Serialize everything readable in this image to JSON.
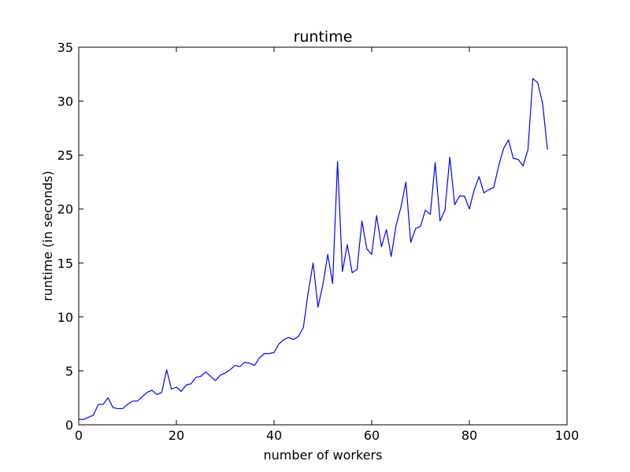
{
  "chart_data": {
    "type": "line",
    "title": "runtime",
    "xlabel": "number of workers",
    "ylabel": "runtime (in seconds)",
    "xlim": [
      0,
      100
    ],
    "ylim": [
      0,
      35
    ],
    "xticks": [
      0,
      20,
      40,
      60,
      80,
      100
    ],
    "yticks": [
      0,
      5,
      10,
      15,
      20,
      25,
      30,
      35
    ],
    "grid": false,
    "legend": "none",
    "series": [
      {
        "color": "#0000ff",
        "x": [
          0,
          1,
          2,
          3,
          4,
          5,
          6,
          7,
          8,
          9,
          10,
          11,
          12,
          13,
          14,
          15,
          16,
          17,
          18,
          19,
          20,
          21,
          22,
          23,
          24,
          25,
          26,
          27,
          28,
          29,
          30,
          31,
          32,
          33,
          34,
          35,
          36,
          37,
          38,
          39,
          40,
          41,
          42,
          43,
          44,
          45,
          46,
          47,
          48,
          49,
          50,
          51,
          52,
          53,
          54,
          55,
          56,
          57,
          58,
          59,
          60,
          61,
          62,
          63,
          64,
          65,
          66,
          67,
          68,
          69,
          70,
          71,
          72,
          73,
          74,
          75,
          76,
          77,
          78,
          79,
          80,
          81,
          82,
          83,
          84,
          85,
          86,
          87,
          88,
          89,
          90,
          91,
          92,
          93,
          94,
          95,
          96
        ],
        "y": [
          0.5,
          0.5,
          0.7,
          0.9,
          1.9,
          1.9,
          2.5,
          1.6,
          1.5,
          1.5,
          1.9,
          2.2,
          2.2,
          2.6,
          3.0,
          3.2,
          2.8,
          3.0,
          5.1,
          3.3,
          3.5,
          3.1,
          3.7,
          3.8,
          4.4,
          4.5,
          4.9,
          4.5,
          4.1,
          4.6,
          4.8,
          5.1,
          5.5,
          5.4,
          5.8,
          5.7,
          5.5,
          6.2,
          6.6,
          6.6,
          6.7,
          7.5,
          7.9,
          8.1,
          7.9,
          8.2,
          9.0,
          12.3,
          15.0,
          10.9,
          13.0,
          15.8,
          13.1,
          24.4,
          14.2,
          16.7,
          14.1,
          14.4,
          18.9,
          16.3,
          15.8,
          19.4,
          16.5,
          18.1,
          15.6,
          18.5,
          20.2,
          22.5,
          16.9,
          18.2,
          18.4,
          19.9,
          19.5,
          24.3,
          18.9,
          19.9,
          24.8,
          20.4,
          21.2,
          21.2,
          20.0,
          21.8,
          23.0,
          21.5,
          21.8,
          22.0,
          24.0,
          25.6,
          26.4,
          24.7,
          24.6,
          24.0,
          25.5,
          32.1,
          31.7,
          29.8,
          25.5
        ]
      }
    ]
  }
}
